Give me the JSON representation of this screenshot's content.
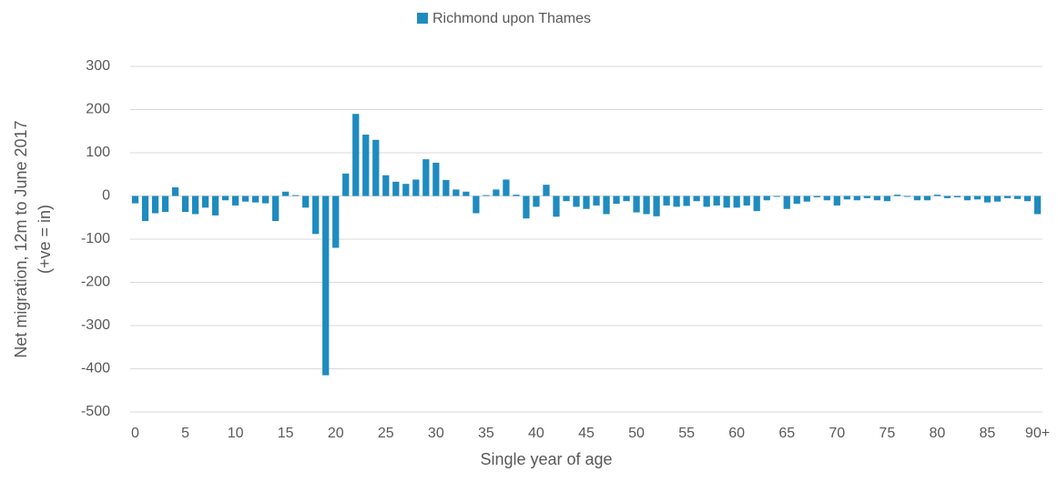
{
  "chart_data": {
    "type": "bar",
    "series": [
      {
        "name": "Richmond upon Thames",
        "color": "#1f8bbf",
        "values": [
          -17,
          -58,
          -40,
          -37,
          20,
          -37,
          -42,
          -27,
          -45,
          -10,
          -22,
          -13,
          -15,
          -17,
          -58,
          10,
          2,
          -27,
          -88,
          -415,
          -120,
          52,
          190,
          142,
          130,
          48,
          33,
          28,
          38,
          85,
          77,
          37,
          15,
          10,
          -40,
          2,
          15,
          38,
          3,
          -52,
          -25,
          26,
          -48,
          -12,
          -25,
          -30,
          -22,
          -42,
          -18,
          -12,
          -38,
          -42,
          -47,
          -22,
          -25,
          -23,
          -12,
          -25,
          -22,
          -27,
          -27,
          -22,
          -35,
          -10,
          -2,
          -30,
          -18,
          -13,
          -3,
          -10,
          -22,
          -8,
          -10,
          -5,
          -10,
          -12,
          3,
          -2,
          -10,
          -10,
          3,
          -5,
          -3,
          -10,
          -8,
          -15,
          -13,
          -5,
          -7,
          -12,
          -42
        ]
      }
    ],
    "categories": [
      "0",
      null,
      null,
      null,
      null,
      "5",
      null,
      null,
      null,
      null,
      "10",
      null,
      null,
      null,
      null,
      "15",
      null,
      null,
      null,
      null,
      "20",
      null,
      null,
      null,
      null,
      "25",
      null,
      null,
      null,
      null,
      "30",
      null,
      null,
      null,
      null,
      "35",
      null,
      null,
      null,
      null,
      "40",
      null,
      null,
      null,
      null,
      "45",
      null,
      null,
      null,
      null,
      "50",
      null,
      null,
      null,
      null,
      "55",
      null,
      null,
      null,
      null,
      "60",
      null,
      null,
      null,
      null,
      "65",
      null,
      null,
      null,
      null,
      "70",
      null,
      null,
      null,
      null,
      "75",
      null,
      null,
      null,
      null,
      "80",
      null,
      null,
      null,
      null,
      "85",
      null,
      null,
      null,
      null,
      "90+"
    ],
    "ylim": [
      -500,
      300
    ],
    "yticks": [
      -500,
      -400,
      -300,
      -200,
      -100,
      0,
      100,
      200,
      300
    ],
    "grid": true,
    "xlabel": "Single year of age",
    "ylabel": [
      "Net migration, 12m to June 2017",
      "(+ve = in)"
    ],
    "legend": "top"
  }
}
